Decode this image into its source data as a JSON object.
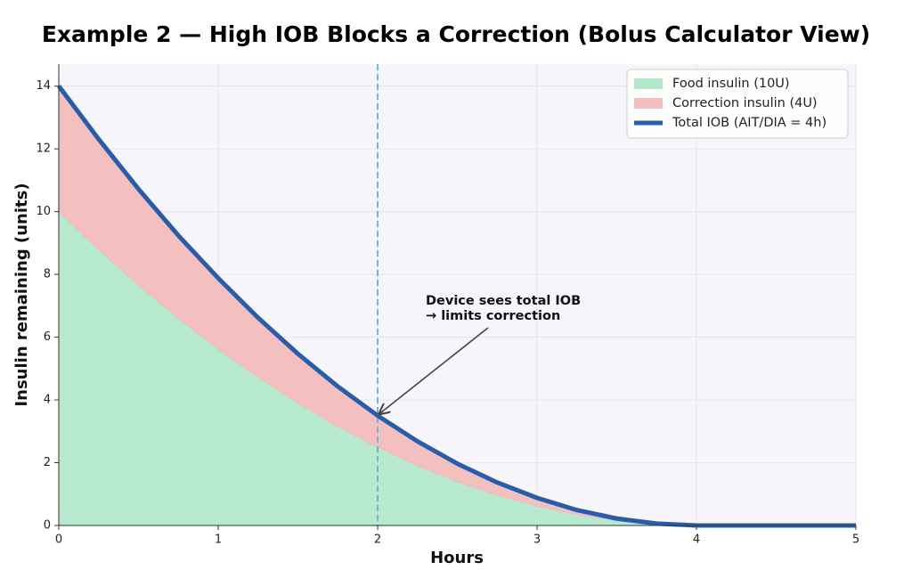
{
  "chart_data": {
    "type": "area",
    "title": "Example 2 — High IOB Blocks a Correction (Bolus Calculator View)",
    "x_label": "Hours",
    "y_label": "Insulin remaining (units)",
    "x": [
      0,
      0.25,
      0.5,
      0.75,
      1,
      1.25,
      1.5,
      1.75,
      2,
      2.25,
      2.5,
      2.75,
      3,
      3.25,
      3.5,
      3.75,
      4,
      4.25,
      4.5,
      4.75,
      5
    ],
    "series": [
      {
        "name": "Food insulin (10U)",
        "style": "area",
        "color": "#b3e8cb",
        "values": [
          10,
          8.79,
          7.66,
          6.6,
          5.63,
          4.73,
          3.91,
          3.16,
          2.5,
          1.91,
          1.41,
          0.98,
          0.63,
          0.35,
          0.16,
          0.04,
          0,
          0,
          0,
          0,
          0
        ]
      },
      {
        "name": "Correction insulin (4U)",
        "style": "area",
        "color": "#f2bdbc",
        "values": [
          4,
          3.52,
          3.06,
          2.64,
          2.25,
          1.89,
          1.56,
          1.27,
          1.0,
          0.77,
          0.56,
          0.39,
          0.25,
          0.14,
          0.06,
          0.02,
          0,
          0,
          0,
          0,
          0
        ]
      },
      {
        "name": "Total IOB (AIT/DIA = 4h)",
        "style": "line",
        "color": "#2a5ca8",
        "values": [
          14,
          12.31,
          10.72,
          9.24,
          7.88,
          6.62,
          5.47,
          4.43,
          3.5,
          2.68,
          1.97,
          1.37,
          0.88,
          0.49,
          0.22,
          0.06,
          0,
          0,
          0,
          0,
          0
        ]
      }
    ],
    "xlim": [
      0,
      5
    ],
    "ylim": [
      0,
      14.7
    ],
    "xticks": [
      0,
      1,
      2,
      3,
      4,
      5
    ],
    "yticks": [
      0,
      2,
      4,
      6,
      8,
      10,
      12,
      14
    ],
    "grid": true,
    "legend": "upper right",
    "vline": {
      "x": 2,
      "color": "#7ab0d8"
    },
    "annotation": {
      "lines": [
        "Device sees total IOB",
        "→ limits correction"
      ],
      "x": 2,
      "y": 3.5
    }
  }
}
